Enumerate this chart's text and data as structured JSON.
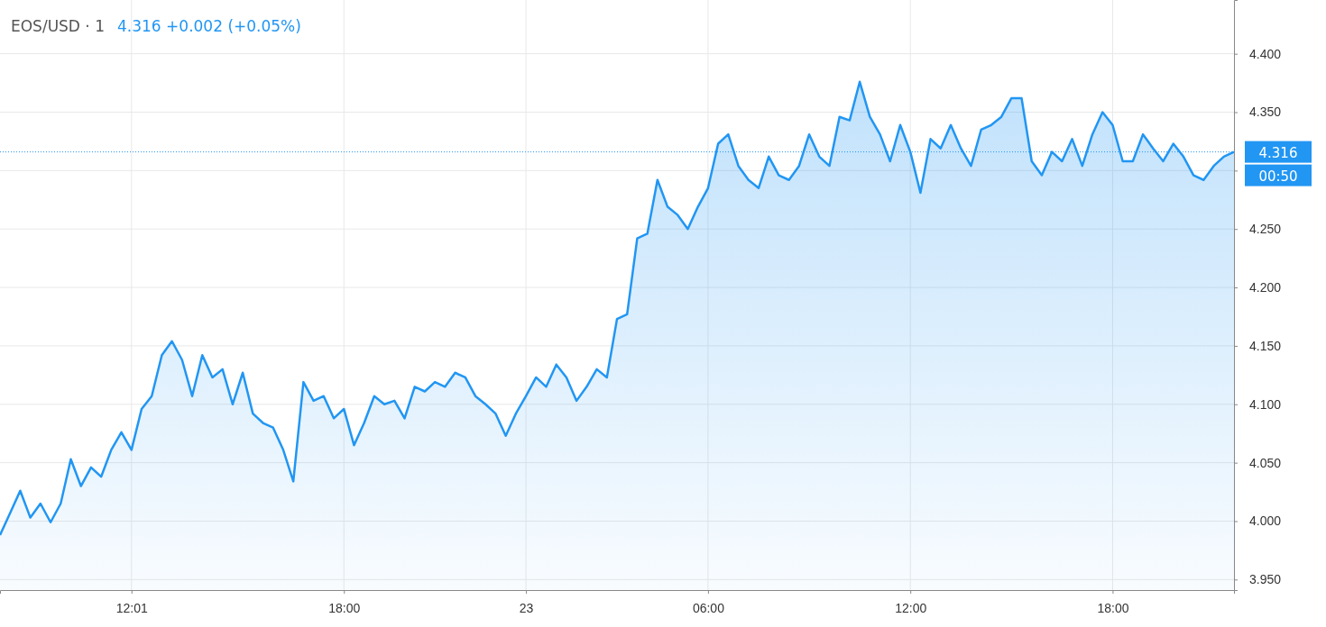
{
  "chart_data": {
    "type": "area",
    "title": "EOS/USD · 1",
    "subtitle": "4.316 +0.002 (+0.05%)",
    "annotations": [
      "00:50"
    ],
    "categories": [
      null,
      null,
      null,
      null,
      null,
      null,
      null,
      null,
      null,
      null,
      null,
      null,
      null,
      "12:01",
      null,
      null,
      null,
      null,
      null,
      null,
      null,
      null,
      null,
      null,
      null,
      null,
      null,
      null,
      null,
      null,
      null,
      null,
      null,
      null,
      "18:00",
      null,
      null,
      null,
      null,
      null,
      null,
      null,
      null,
      null,
      null,
      null,
      null,
      null,
      null,
      null,
      null,
      null,
      "23",
      null,
      null,
      null,
      null,
      null,
      null,
      null,
      null,
      null,
      null,
      null,
      null,
      null,
      null,
      null,
      null,
      null,
      "06:00",
      null,
      null,
      null,
      null,
      null,
      null,
      null,
      null,
      null,
      null,
      null,
      null,
      null,
      null,
      null,
      null,
      null,
      null,
      null,
      "12:00",
      null,
      null,
      null,
      null,
      null,
      null,
      null,
      null,
      null,
      null,
      null,
      null,
      null,
      null,
      null,
      null,
      null,
      null,
      null,
      "18:00",
      null,
      null,
      null,
      null,
      null,
      null,
      null,
      null,
      null,
      null,
      null,
      null
    ],
    "series": [
      {
        "color": "#2196f3",
        "values": [
          3.988,
          4.007,
          4.026,
          4.003,
          4.015,
          3.999,
          4.015,
          4.053,
          4.03,
          4.046,
          4.038,
          4.061,
          4.076,
          4.061,
          4.096,
          4.107,
          4.142,
          4.154,
          4.138,
          4.107,
          4.142,
          4.123,
          4.13,
          4.1,
          4.127,
          4.092,
          4.084,
          4.08,
          4.061,
          4.034,
          4.119,
          4.103,
          4.107,
          4.088,
          4.096,
          4.065,
          4.084,
          4.107,
          4.1,
          4.103,
          4.088,
          4.115,
          4.111,
          4.119,
          4.115,
          4.127,
          4.123,
          4.107,
          4.1,
          4.092,
          4.073,
          4.092,
          4.107,
          4.123,
          4.115,
          4.134,
          4.123,
          4.103,
          4.115,
          4.13,
          4.123,
          4.173,
          4.177,
          4.242,
          4.246,
          4.292,
          4.269,
          4.262,
          4.25,
          4.269,
          4.285,
          4.323,
          4.331,
          4.304,
          4.292,
          4.285,
          4.312,
          4.296,
          4.292,
          4.304,
          4.331,
          4.312,
          4.304,
          4.346,
          4.343,
          4.376,
          4.346,
          4.331,
          4.308,
          4.339,
          4.316,
          4.281,
          4.327,
          4.319,
          4.339,
          4.319,
          4.304,
          4.335,
          4.339,
          4.346,
          4.362,
          4.362,
          4.308,
          4.296,
          4.316,
          4.308,
          4.327,
          4.304,
          4.331,
          4.35,
          4.339,
          4.308,
          4.308,
          4.331,
          4.319,
          4.308,
          4.323,
          4.312,
          4.296,
          4.292,
          4.304,
          4.312,
          4.316
        ]
      }
    ],
    "ylim": [
      3.941,
      4.446
    ],
    "yticks": [
      {
        "value": 3.95,
        "label": "3.950"
      },
      {
        "value": 4,
        "label": "4.000"
      },
      {
        "value": 4.05,
        "label": "4.050"
      },
      {
        "value": 4.1,
        "label": "4.100"
      },
      {
        "value": 4.15,
        "label": "4.150"
      },
      {
        "value": 4.2,
        "label": "4.200"
      },
      {
        "value": 4.25,
        "label": "4.250"
      },
      {
        "value": 4.3,
        "label": null
      },
      {
        "value": 4.35,
        "label": "4.350"
      },
      {
        "value": 4.4,
        "label": "4.400"
      }
    ],
    "ref_lines": [
      {
        "axis": "y",
        "value": 4.316,
        "label": "4.316",
        "color": "#2196f3",
        "line_style": "dotted"
      }
    ],
    "grid": true
  }
}
